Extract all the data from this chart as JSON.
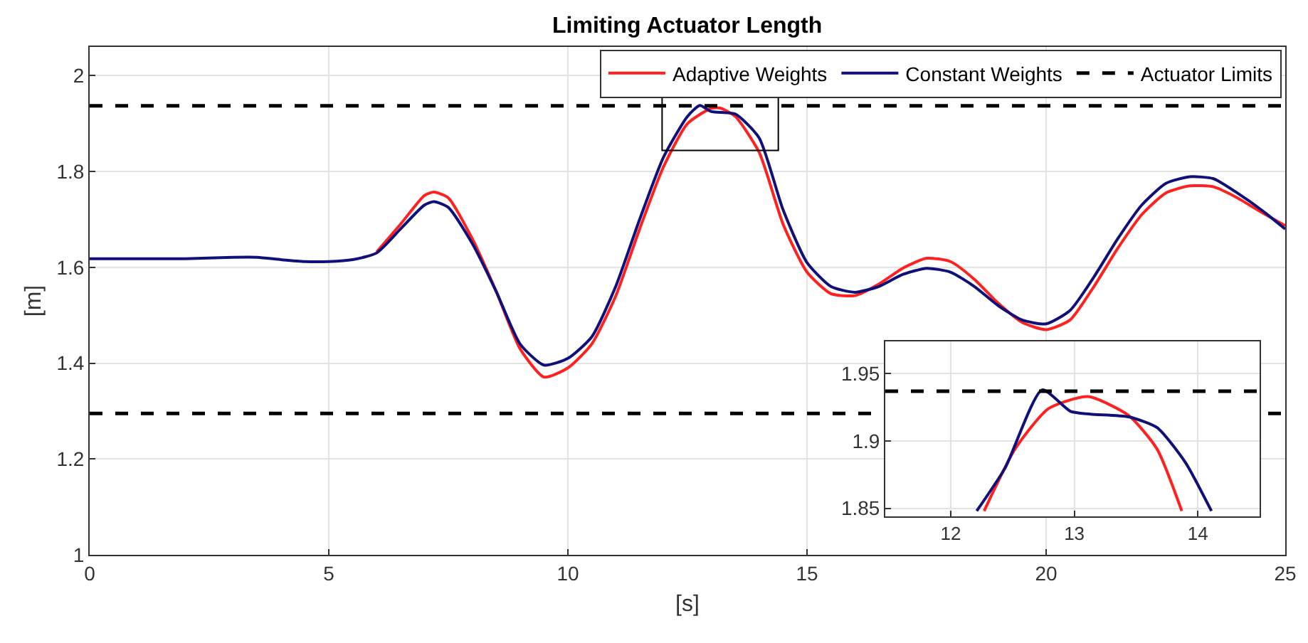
{
  "chart_data": [
    {
      "type": "line",
      "title": "Limiting Actuator Length",
      "xlabel": "[s]",
      "ylabel": "[m]",
      "xlim": [
        0,
        25
      ],
      "xticks": [
        0,
        5,
        10,
        15,
        20,
        25
      ],
      "ylim": [
        1,
        2.06
      ],
      "yticks": [
        1,
        1.2,
        1.4,
        1.6,
        1.8,
        2
      ],
      "grid": true,
      "legend": "top right",
      "line_style": "solid",
      "marker": "none",
      "series": [
        {
          "name": "Adaptive Weights",
          "color": "#ff2020",
          "x": [
            6,
            6.5,
            7,
            7.2,
            7.5,
            8,
            8.5,
            9,
            9.5,
            10,
            10.5,
            11,
            11.5,
            12,
            12.5,
            13,
            13.2,
            13.5,
            14,
            14.5,
            15,
            15.5,
            16,
            16.5,
            17,
            17.5,
            18,
            18.5,
            19,
            19.5,
            20,
            20.5,
            21,
            21.5,
            22,
            22.5,
            23,
            23.5,
            24,
            24.5,
            25
          ],
          "values": [
            1.632,
            1.69,
            1.75,
            1.757,
            1.745,
            1.66,
            1.55,
            1.43,
            1.371,
            1.39,
            1.44,
            1.54,
            1.68,
            1.81,
            1.9,
            1.932,
            1.932,
            1.915,
            1.84,
            1.69,
            1.59,
            1.545,
            1.541,
            1.565,
            1.598,
            1.619,
            1.612,
            1.575,
            1.525,
            1.485,
            1.47,
            1.49,
            1.56,
            1.64,
            1.71,
            1.755,
            1.77,
            1.768,
            1.745,
            1.715,
            1.687
          ]
        },
        {
          "name": "Constant Weights",
          "color": "#10107a",
          "x": [
            0,
            1,
            2,
            3,
            3.5,
            4,
            4.5,
            5,
            5.5,
            6,
            6.5,
            7,
            7.2,
            7.5,
            8,
            8.5,
            9,
            9.5,
            10,
            10.5,
            11,
            11.5,
            12,
            12.5,
            12.76,
            13,
            13.5,
            14,
            14.5,
            15,
            15.5,
            16,
            16.5,
            17,
            17.5,
            18,
            18.5,
            19,
            19.5,
            20,
            20.5,
            21,
            21.5,
            22,
            22.5,
            23,
            23.5,
            24,
            24.5,
            25
          ],
          "values": [
            1.618,
            1.618,
            1.618,
            1.621,
            1.621,
            1.616,
            1.612,
            1.612,
            1.616,
            1.63,
            1.68,
            1.73,
            1.737,
            1.725,
            1.65,
            1.55,
            1.44,
            1.396,
            1.41,
            1.455,
            1.56,
            1.7,
            1.83,
            1.915,
            1.938,
            1.925,
            1.92,
            1.87,
            1.72,
            1.61,
            1.56,
            1.548,
            1.56,
            1.585,
            1.598,
            1.59,
            1.56,
            1.52,
            1.49,
            1.482,
            1.51,
            1.58,
            1.66,
            1.73,
            1.775,
            1.789,
            1.785,
            1.755,
            1.72,
            1.68
          ]
        }
      ],
      "ref_lines": [
        {
          "axis": "y",
          "value": 1.937,
          "label": "Actuator Limits",
          "color": "#000000",
          "line_style": "dashed"
        },
        {
          "axis": "y",
          "value": 1.295,
          "color": "#000000",
          "line_style": "dashed"
        }
      ]
    },
    {
      "type": "line",
      "xlim": [
        11.47,
        14.5
      ],
      "xticks": [
        12,
        13,
        14
      ],
      "ylim": [
        1.844,
        1.974
      ],
      "yticks": [
        1.85,
        1.9,
        1.95
      ],
      "grid": true,
      "line_style": "solid",
      "marker": "none",
      "series": [
        {
          "color": "#ff2020",
          "x": [
            12.27,
            12.52,
            12.79,
            13.11,
            13.44,
            13.67,
            13.87
          ],
          "values": [
            1.848,
            1.894,
            1.924,
            1.933,
            1.919,
            1.894,
            1.848
          ]
        },
        {
          "color": "#10107a",
          "x": [
            12.21,
            12.44,
            12.74,
            12.97,
            13.13,
            13.44,
            13.67,
            13.9,
            14.11
          ],
          "values": [
            1.848,
            1.88,
            1.938,
            1.922,
            1.92,
            1.918,
            1.91,
            1.884,
            1.848
          ]
        }
      ],
      "ref_lines": [
        {
          "axis": "y",
          "value": 1.937,
          "color": "#000000",
          "line_style": "dashed"
        }
      ]
    }
  ]
}
